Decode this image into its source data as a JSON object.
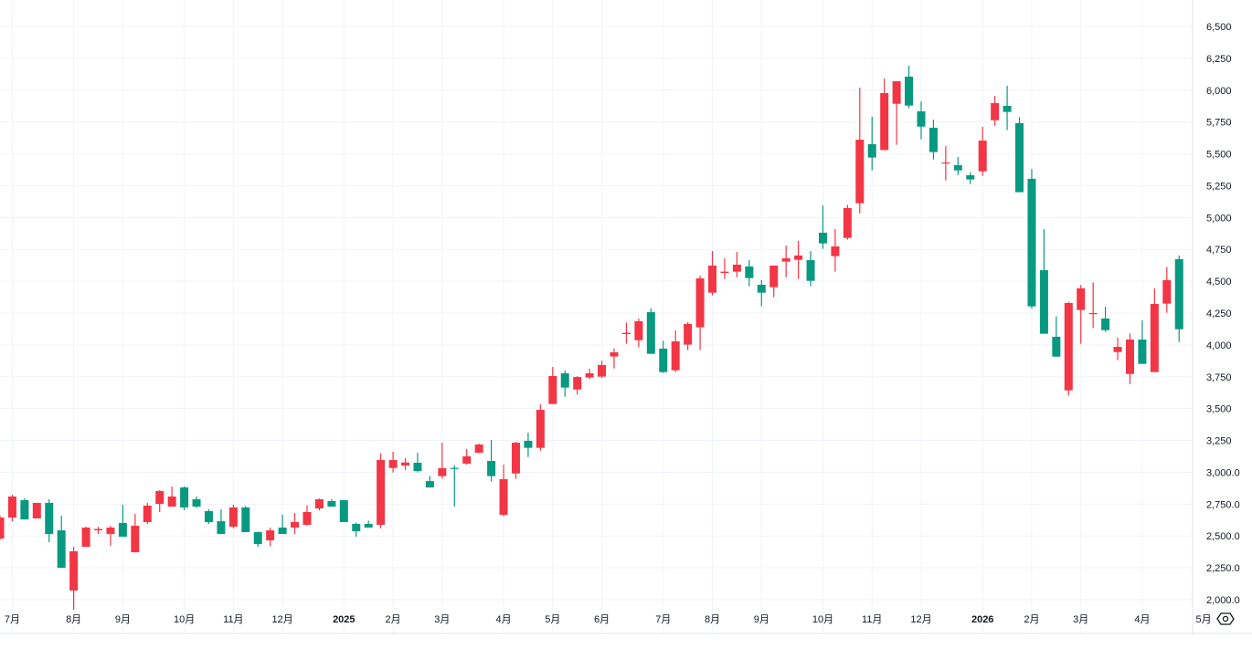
{
  "chart_data": {
    "type": "candlestick",
    "title": "",
    "xlabel": "",
    "ylabel": "",
    "ylim": [
      2000,
      6500
    ],
    "grid": true,
    "colors": {
      "up": "#F23645",
      "down": "#089981",
      "grid": "#f0f3fa",
      "text": "#131722"
    },
    "fields": [
      "open",
      "high",
      "low",
      "close"
    ],
    "candles": [
      [
        2480,
        2660,
        2470,
        2645
      ],
      [
        2645,
        2824,
        2616,
        2810
      ],
      [
        2781,
        2795,
        2630,
        2630
      ],
      [
        2638,
        2760,
        2638,
        2760
      ],
      [
        2760,
        2788,
        2451,
        2516
      ],
      [
        2544,
        2659,
        2250,
        2250
      ],
      [
        2072,
        2415,
        1920,
        2380
      ],
      [
        2415,
        2573,
        2415,
        2566
      ],
      [
        2545,
        2573,
        2516,
        2555
      ],
      [
        2516,
        2580,
        2423,
        2566
      ],
      [
        2602,
        2745,
        2494,
        2494
      ],
      [
        2372,
        2673,
        2372,
        2580
      ],
      [
        2609,
        2760,
        2595,
        2738
      ],
      [
        2752,
        2860,
        2688,
        2853
      ],
      [
        2731,
        2888,
        2731,
        2810
      ],
      [
        2881,
        2890,
        2702,
        2724
      ],
      [
        2788,
        2810,
        2720,
        2731
      ],
      [
        2695,
        2710,
        2595,
        2609
      ],
      [
        2616,
        2709,
        2516,
        2516
      ],
      [
        2573,
        2745,
        2560,
        2724
      ],
      [
        2724,
        2735,
        2530,
        2530
      ],
      [
        2530,
        2535,
        2415,
        2437
      ],
      [
        2466,
        2566,
        2420,
        2544
      ],
      [
        2566,
        2666,
        2516,
        2516
      ],
      [
        2566,
        2680,
        2516,
        2609
      ],
      [
        2588,
        2740,
        2580,
        2688
      ],
      [
        2716,
        2795,
        2700,
        2788
      ],
      [
        2774,
        2790,
        2731,
        2731
      ],
      [
        2781,
        2781,
        2609,
        2609
      ],
      [
        2595,
        2605,
        2494,
        2537
      ],
      [
        2595,
        2620,
        2566,
        2566
      ],
      [
        2588,
        3149,
        2560,
        3096
      ],
      [
        3034,
        3161,
        2998,
        3096
      ],
      [
        3053,
        3111,
        3017,
        3077
      ],
      [
        3075,
        3154,
        2998,
        3010
      ],
      [
        2931,
        2970,
        2881,
        2881
      ],
      [
        2970,
        3232,
        2951,
        3032
      ],
      [
        3035,
        3053,
        2731,
        3030
      ],
      [
        3068,
        3182,
        3060,
        3125
      ],
      [
        3154,
        3225,
        3150,
        3218
      ],
      [
        3089,
        3254,
        2927,
        2970
      ],
      [
        2666,
        3060,
        2654,
        2946
      ],
      [
        2991,
        3240,
        2948,
        3232
      ],
      [
        3247,
        3311,
        3120,
        3192
      ],
      [
        3192,
        3533,
        3170,
        3490
      ],
      [
        3536,
        3827,
        3536,
        3756
      ],
      [
        3777,
        3799,
        3593,
        3665
      ],
      [
        3650,
        3755,
        3610,
        3748
      ],
      [
        3744,
        3812,
        3730,
        3777
      ],
      [
        3751,
        3876,
        3740,
        3842
      ],
      [
        3909,
        3971,
        3815,
        3942
      ],
      [
        4085,
        4176,
        4009,
        4095
      ],
      [
        4037,
        4207,
        3980,
        4186
      ],
      [
        4257,
        4286,
        3930,
        3930
      ],
      [
        3971,
        4033,
        3780,
        3787
      ],
      [
        3801,
        4114,
        3787,
        4028
      ],
      [
        4002,
        4178,
        3959,
        4164
      ],
      [
        4138,
        4544,
        3959,
        4522
      ],
      [
        4410,
        4737,
        4389,
        4623
      ],
      [
        4565,
        4680,
        4518,
        4575
      ],
      [
        4575,
        4730,
        4532,
        4630
      ],
      [
        4616,
        4666,
        4460,
        4525
      ],
      [
        4472,
        4508,
        4303,
        4410
      ],
      [
        4453,
        4623,
        4374,
        4623
      ],
      [
        4654,
        4781,
        4532,
        4680
      ],
      [
        4668,
        4816,
        4518,
        4702
      ],
      [
        4666,
        4737,
        4460,
        4503
      ],
      [
        4881,
        5095,
        4754,
        4797
      ],
      [
        4697,
        4910,
        4575,
        4773
      ],
      [
        4840,
        5100,
        4826,
        5074
      ],
      [
        5112,
        6020,
        5033,
        5611
      ],
      [
        5576,
        5791,
        5370,
        5471
      ],
      [
        5530,
        6092,
        5528,
        5977
      ],
      [
        5893,
        6070,
        5571,
        6070
      ],
      [
        6106,
        6192,
        5858,
        5879
      ],
      [
        5834,
        5912,
        5614,
        5714
      ],
      [
        5705,
        5769,
        5456,
        5514
      ],
      [
        5425,
        5561,
        5291,
        5432
      ],
      [
        5411,
        5475,
        5334,
        5370
      ],
      [
        5332,
        5356,
        5263,
        5299
      ],
      [
        5363,
        5712,
        5327,
        5604
      ],
      [
        5764,
        5955,
        5721,
        5898
      ],
      [
        5877,
        6034,
        5686,
        5829
      ],
      [
        5741,
        5789,
        5199,
        5199
      ],
      [
        5304,
        5380,
        4284,
        4303
      ],
      [
        4587,
        4909,
        4088,
        4088
      ],
      [
        4064,
        4224,
        3908,
        3908
      ],
      [
        3643,
        4339,
        3603,
        4329
      ],
      [
        4274,
        4470,
        4009,
        4444
      ],
      [
        4245,
        4491,
        4133,
        4250
      ],
      [
        4207,
        4300,
        4102,
        4116
      ],
      [
        3944,
        4057,
        3880,
        3985
      ],
      [
        3772,
        4090,
        3693,
        4042
      ],
      [
        4042,
        4193,
        3851,
        3851
      ],
      [
        3787,
        4444,
        3787,
        4322
      ],
      [
        4324,
        4611,
        4253,
        4508
      ],
      [
        4673,
        4702,
        4023,
        4123
      ]
    ],
    "y_ticks": [
      {
        "value": 6500,
        "label": "6,500"
      },
      {
        "value": 6250,
        "label": "6,250"
      },
      {
        "value": 6000,
        "label": "6,000"
      },
      {
        "value": 5750,
        "label": "5,750"
      },
      {
        "value": 5500,
        "label": "5,500"
      },
      {
        "value": 5250,
        "label": "5,250"
      },
      {
        "value": 5000,
        "label": "5,000"
      },
      {
        "value": 4750,
        "label": "4,750"
      },
      {
        "value": 4500,
        "label": "4,500"
      },
      {
        "value": 4250,
        "label": "4,250"
      },
      {
        "value": 4000,
        "label": "4,000"
      },
      {
        "value": 3750,
        "label": "3,750"
      },
      {
        "value": 3500,
        "label": "3,500"
      },
      {
        "value": 3250,
        "label": "3,250"
      },
      {
        "value": 3000,
        "label": "3,000.0"
      },
      {
        "value": 2750,
        "label": "2,750.0"
      },
      {
        "value": 2500,
        "label": "2,500.0"
      },
      {
        "value": 2250,
        "label": "2,250.0"
      },
      {
        "value": 2000,
        "label": "2,000.0"
      }
    ],
    "x_ticks": [
      {
        "candle": 2,
        "label": "7月"
      },
      {
        "candle": 7,
        "label": "8月"
      },
      {
        "candle": 11,
        "label": "9月"
      },
      {
        "candle": 16,
        "label": "10月"
      },
      {
        "candle": 20,
        "label": "11月"
      },
      {
        "candle": 24,
        "label": "12月"
      },
      {
        "candle": 29,
        "label": "2025",
        "bold": true
      },
      {
        "candle": 33,
        "label": "2月"
      },
      {
        "candle": 37,
        "label": "3月"
      },
      {
        "candle": 42,
        "label": "4月"
      },
      {
        "candle": 46,
        "label": "5月"
      },
      {
        "candle": 50,
        "label": "6月"
      },
      {
        "candle": 55,
        "label": "7月"
      },
      {
        "candle": 59,
        "label": "8月"
      },
      {
        "candle": 63,
        "label": "9月"
      },
      {
        "candle": 68,
        "label": "10月"
      },
      {
        "candle": 72,
        "label": "11月"
      },
      {
        "candle": 76,
        "label": "12月"
      },
      {
        "candle": 81,
        "label": "2026",
        "bold": true
      },
      {
        "candle": 85,
        "label": "2月"
      },
      {
        "candle": 89,
        "label": "3月"
      },
      {
        "candle": 94,
        "label": "4月"
      },
      {
        "candle": 99,
        "label": "5月"
      }
    ]
  },
  "controls": {
    "settings_icon": "eye-settings-icon"
  }
}
